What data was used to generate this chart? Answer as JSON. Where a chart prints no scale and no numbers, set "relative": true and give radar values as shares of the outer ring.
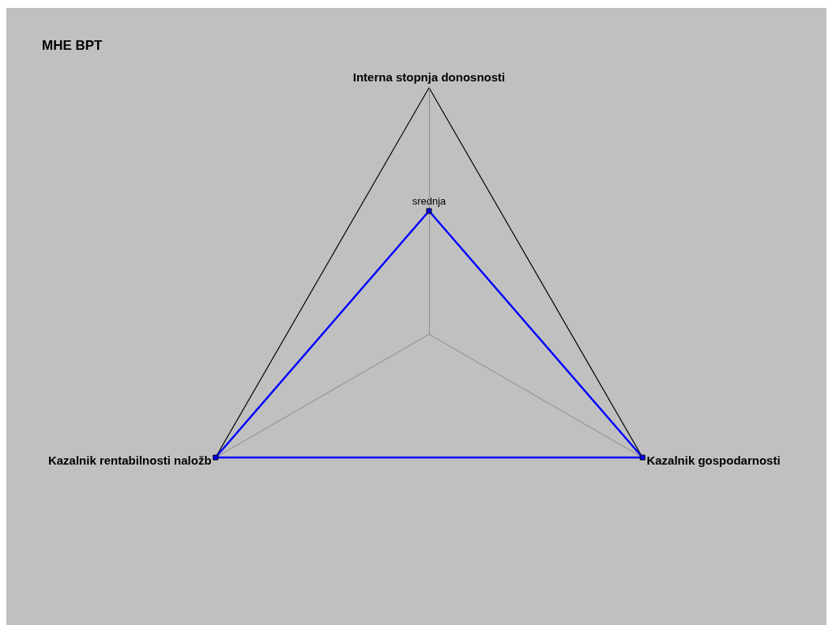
{
  "chart_data": {
    "type": "radar",
    "title": "MHE BPT",
    "relative": true,
    "categories": [
      "Interna stopnja donosnosti",
      "Kazalnik gospodarnosti",
      "Kazalnik rentabilnosti naložb"
    ],
    "series": [
      {
        "color": "#0000ff",
        "values": [
          0.5,
          1,
          1
        ]
      }
    ],
    "marker": "square",
    "annotations": [
      "srednja"
    ]
  }
}
